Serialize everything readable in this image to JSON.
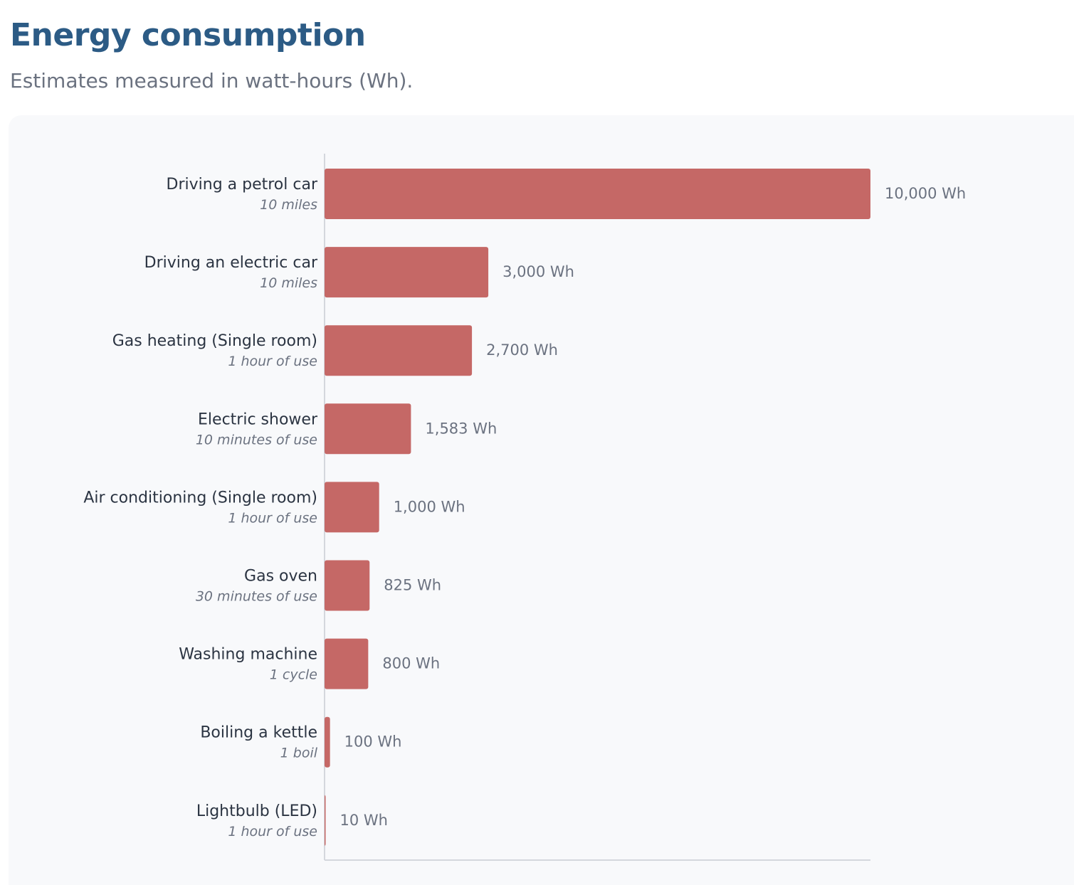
{
  "header": {
    "title": "Energy consumption",
    "subtitle": "Estimates measured in watt-hours (Wh)."
  },
  "colors": {
    "title": "#2c5b85",
    "bar": "#c56866",
    "panel": "#f8f9fb",
    "axis": "#d4d7dd"
  },
  "chart_data": {
    "type": "bar",
    "orientation": "horizontal",
    "title": "Energy consumption",
    "subtitle": "Estimates measured in watt-hours (Wh).",
    "unit": "Wh",
    "xlim": [
      0,
      10000
    ],
    "grid": false,
    "categories": [
      "Driving a petrol car",
      "Driving  an electric car",
      "Gas heating (Single room)",
      "Electric shower",
      "Air conditioning (Single room)",
      "Gas oven",
      "Washing machine",
      "Boiling a kettle",
      "Lightbulb (LED)"
    ],
    "descriptions": [
      "10 miles",
      "10 miles",
      "1 hour of use",
      "10 minutes of use",
      "1 hour of use",
      "30 minutes of use",
      "1 cycle",
      "1 boil",
      "1 hour of use"
    ],
    "values": [
      10000,
      3000,
      2700,
      1583,
      1000,
      825,
      800,
      100,
      10
    ],
    "value_labels": [
      "10,000 Wh",
      "3,000 Wh",
      "2,700 Wh",
      "1,583 Wh",
      "1,000 Wh",
      "825 Wh",
      "800 Wh",
      "100 Wh",
      "10 Wh"
    ]
  }
}
